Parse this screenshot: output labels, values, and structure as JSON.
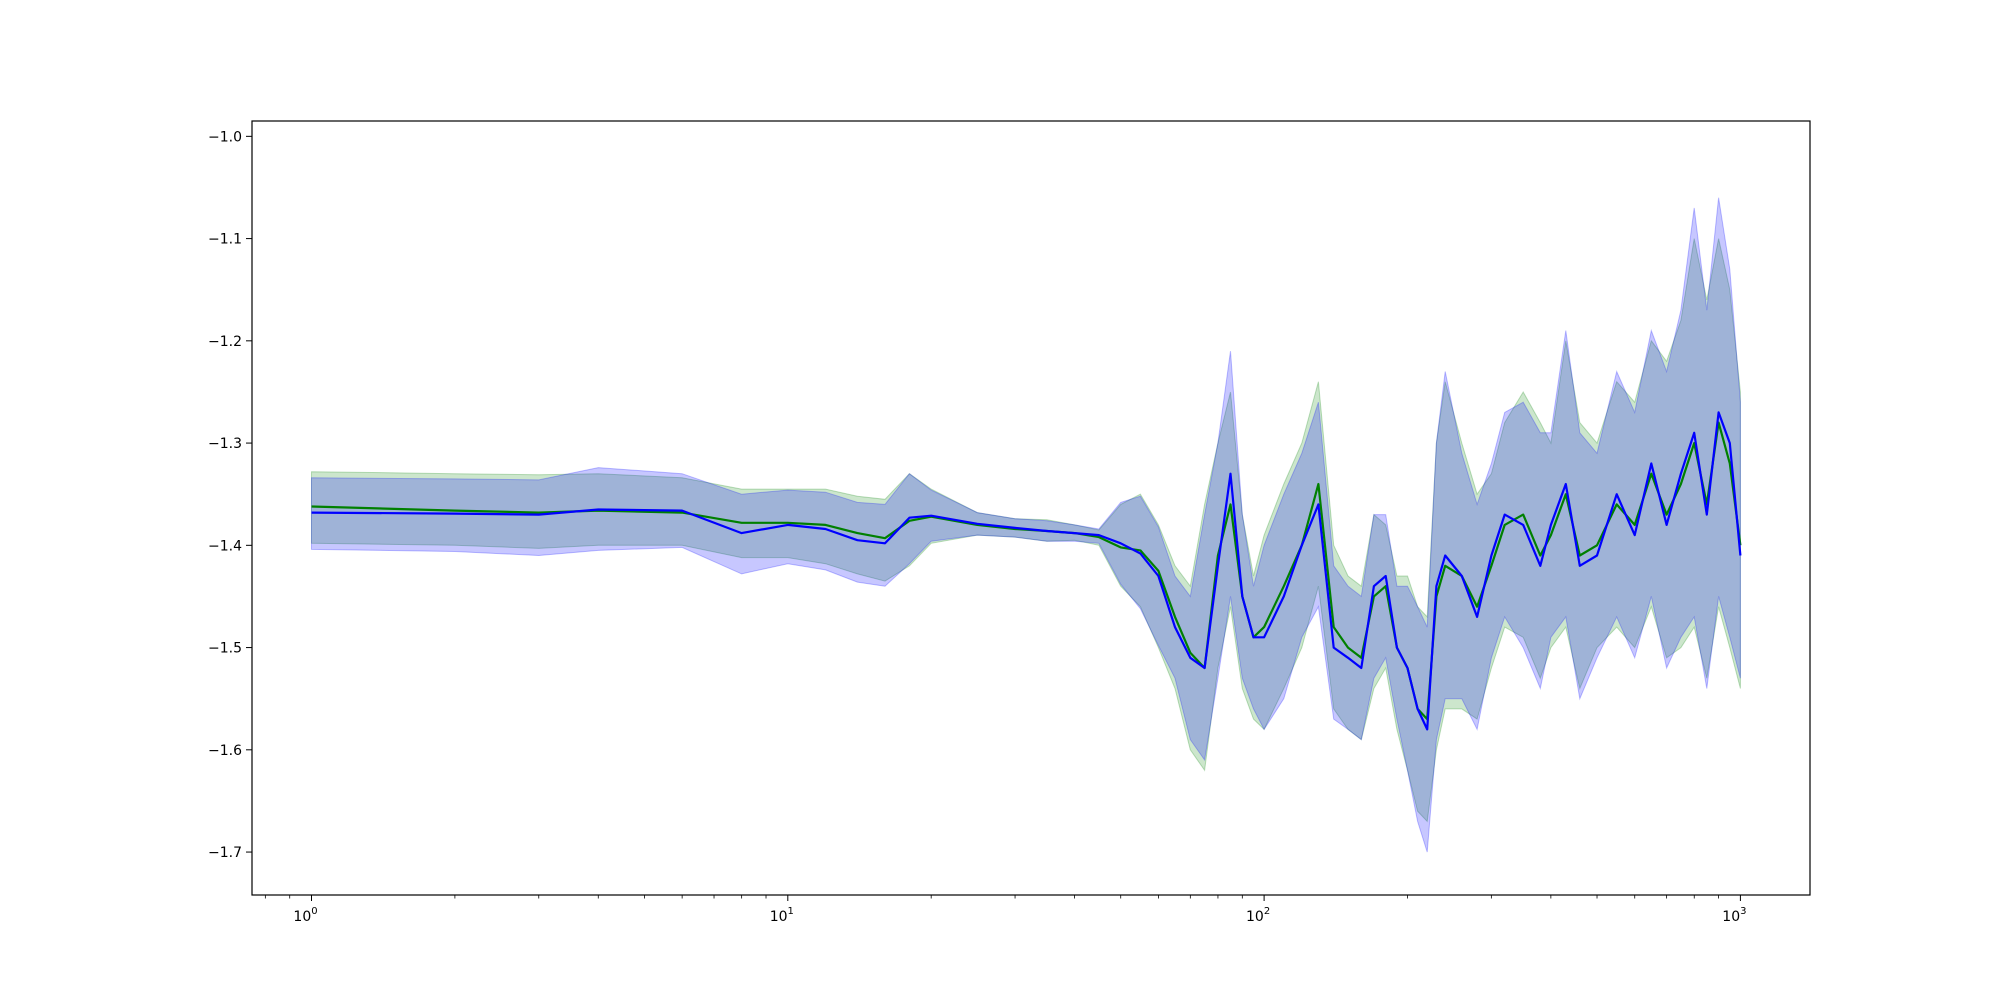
{
  "chart_data": {
    "type": "line",
    "title": "",
    "xlabel": "",
    "ylabel": "",
    "xscale": "log",
    "xlim": [
      0.75,
      1400
    ],
    "ylim": [
      -1.742,
      -0.985
    ],
    "grid": false,
    "x_ticks": [
      {
        "value": 1,
        "base": "10",
        "exp": "0"
      },
      {
        "value": 10,
        "base": "10",
        "exp": "1"
      },
      {
        "value": 100,
        "base": "10",
        "exp": "2"
      },
      {
        "value": 1000,
        "base": "10",
        "exp": "3"
      }
    ],
    "y_ticks": [
      {
        "value": -1.0,
        "label": "−1.0"
      },
      {
        "value": -1.1,
        "label": "−1.1"
      },
      {
        "value": -1.2,
        "label": "−1.2"
      },
      {
        "value": -1.3,
        "label": "−1.3"
      },
      {
        "value": -1.4,
        "label": "−1.4"
      },
      {
        "value": -1.5,
        "label": "−1.5"
      },
      {
        "value": -1.6,
        "label": "−1.6"
      },
      {
        "value": -1.7,
        "label": "−1.7"
      }
    ],
    "x": [
      1,
      2,
      3,
      4,
      6,
      8,
      10,
      12,
      14,
      16,
      18,
      20,
      25,
      30,
      35,
      40,
      45,
      50,
      55,
      60,
      65,
      70,
      75,
      80,
      85,
      90,
      95,
      100,
      110,
      120,
      130,
      140,
      150,
      160,
      170,
      180,
      190,
      200,
      210,
      220,
      230,
      240,
      260,
      280,
      300,
      320,
      350,
      380,
      400,
      430,
      460,
      500,
      550,
      600,
      650,
      700,
      750,
      800,
      850,
      900,
      950,
      1000
    ],
    "series": [
      {
        "color": "#008000",
        "values": [
          -1.362,
          -1.366,
          -1.368,
          -1.366,
          -1.368,
          -1.378,
          -1.378,
          -1.38,
          -1.388,
          -1.393,
          -1.376,
          -1.372,
          -1.38,
          -1.384,
          -1.386,
          -1.388,
          -1.392,
          -1.402,
          -1.405,
          -1.425,
          -1.47,
          -1.505,
          -1.52,
          -1.41,
          -1.36,
          -1.45,
          -1.49,
          -1.48,
          -1.44,
          -1.4,
          -1.34,
          -1.48,
          -1.5,
          -1.51,
          -1.45,
          -1.44,
          -1.5,
          -1.52,
          -1.56,
          -1.57,
          -1.45,
          -1.42,
          -1.43,
          -1.46,
          -1.42,
          -1.38,
          -1.37,
          -1.41,
          -1.39,
          -1.35,
          -1.41,
          -1.4,
          -1.36,
          -1.38,
          -1.33,
          -1.37,
          -1.34,
          -1.3,
          -1.36,
          -1.28,
          -1.32,
          -1.4
        ],
        "upper": [
          -1.328,
          -1.33,
          -1.331,
          -1.33,
          -1.334,
          -1.345,
          -1.345,
          -1.345,
          -1.352,
          -1.355,
          -1.33,
          -1.345,
          -1.368,
          -1.374,
          -1.375,
          -1.38,
          -1.385,
          -1.36,
          -1.35,
          -1.38,
          -1.42,
          -1.44,
          -1.36,
          -1.3,
          -1.25,
          -1.37,
          -1.43,
          -1.39,
          -1.34,
          -1.3,
          -1.24,
          -1.4,
          -1.43,
          -1.44,
          -1.37,
          -1.38,
          -1.43,
          -1.43,
          -1.46,
          -1.47,
          -1.3,
          -1.24,
          -1.3,
          -1.35,
          -1.33,
          -1.28,
          -1.25,
          -1.28,
          -1.3,
          -1.2,
          -1.28,
          -1.3,
          -1.24,
          -1.26,
          -1.2,
          -1.22,
          -1.18,
          -1.1,
          -1.16,
          -1.1,
          -1.15,
          -1.25
        ],
        "lower": [
          -1.398,
          -1.4,
          -1.403,
          -1.4,
          -1.4,
          -1.412,
          -1.412,
          -1.418,
          -1.428,
          -1.435,
          -1.42,
          -1.398,
          -1.39,
          -1.392,
          -1.396,
          -1.395,
          -1.4,
          -1.44,
          -1.46,
          -1.5,
          -1.54,
          -1.6,
          -1.62,
          -1.52,
          -1.46,
          -1.54,
          -1.57,
          -1.58,
          -1.54,
          -1.5,
          -1.44,
          -1.56,
          -1.58,
          -1.59,
          -1.54,
          -1.52,
          -1.58,
          -1.62,
          -1.66,
          -1.67,
          -1.6,
          -1.56,
          -1.56,
          -1.57,
          -1.52,
          -1.48,
          -1.49,
          -1.53,
          -1.5,
          -1.48,
          -1.54,
          -1.5,
          -1.48,
          -1.5,
          -1.46,
          -1.51,
          -1.5,
          -1.48,
          -1.53,
          -1.46,
          -1.5,
          -1.54
        ]
      },
      {
        "color": "#0000ff",
        "values": [
          -1.368,
          -1.369,
          -1.37,
          -1.365,
          -1.366,
          -1.388,
          -1.38,
          -1.384,
          -1.395,
          -1.398,
          -1.373,
          -1.371,
          -1.379,
          -1.383,
          -1.386,
          -1.388,
          -1.39,
          -1.398,
          -1.408,
          -1.43,
          -1.48,
          -1.51,
          -1.52,
          -1.42,
          -1.33,
          -1.45,
          -1.49,
          -1.49,
          -1.45,
          -1.4,
          -1.36,
          -1.5,
          -1.51,
          -1.52,
          -1.44,
          -1.43,
          -1.5,
          -1.52,
          -1.56,
          -1.58,
          -1.44,
          -1.41,
          -1.43,
          -1.47,
          -1.41,
          -1.37,
          -1.38,
          -1.42,
          -1.38,
          -1.34,
          -1.42,
          -1.41,
          -1.35,
          -1.39,
          -1.32,
          -1.38,
          -1.33,
          -1.29,
          -1.37,
          -1.27,
          -1.3,
          -1.41
        ],
        "upper": [
          -1.334,
          -1.335,
          -1.336,
          -1.324,
          -1.33,
          -1.35,
          -1.346,
          -1.348,
          -1.358,
          -1.36,
          -1.33,
          -1.346,
          -1.368,
          -1.374,
          -1.376,
          -1.38,
          -1.384,
          -1.358,
          -1.352,
          -1.382,
          -1.43,
          -1.45,
          -1.37,
          -1.3,
          -1.21,
          -1.37,
          -1.44,
          -1.4,
          -1.35,
          -1.31,
          -1.26,
          -1.42,
          -1.44,
          -1.45,
          -1.37,
          -1.37,
          -1.44,
          -1.44,
          -1.46,
          -1.48,
          -1.3,
          -1.23,
          -1.31,
          -1.36,
          -1.32,
          -1.27,
          -1.26,
          -1.29,
          -1.29,
          -1.19,
          -1.29,
          -1.31,
          -1.23,
          -1.27,
          -1.19,
          -1.23,
          -1.17,
          -1.07,
          -1.17,
          -1.06,
          -1.13,
          -1.26
        ],
        "lower": [
          -1.404,
          -1.406,
          -1.41,
          -1.405,
          -1.402,
          -1.428,
          -1.418,
          -1.424,
          -1.436,
          -1.44,
          -1.418,
          -1.396,
          -1.39,
          -1.392,
          -1.396,
          -1.396,
          -1.398,
          -1.438,
          -1.462,
          -1.498,
          -1.53,
          -1.59,
          -1.61,
          -1.53,
          -1.45,
          -1.53,
          -1.56,
          -1.58,
          -1.55,
          -1.49,
          -1.46,
          -1.57,
          -1.58,
          -1.59,
          -1.53,
          -1.51,
          -1.57,
          -1.62,
          -1.67,
          -1.7,
          -1.59,
          -1.55,
          -1.55,
          -1.58,
          -1.51,
          -1.47,
          -1.5,
          -1.54,
          -1.49,
          -1.47,
          -1.55,
          -1.51,
          -1.47,
          -1.51,
          -1.45,
          -1.52,
          -1.49,
          -1.47,
          -1.54,
          -1.45,
          -1.49,
          -1.53
        ]
      }
    ]
  }
}
